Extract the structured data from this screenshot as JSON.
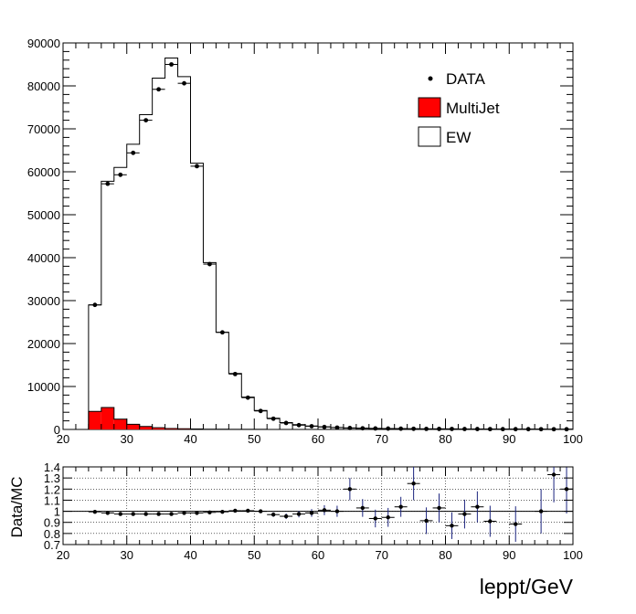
{
  "chart_data": [
    {
      "type": "bar",
      "stacked": true,
      "bin_edges": [
        24,
        26,
        28,
        30,
        32,
        34,
        36,
        38,
        40,
        42,
        44,
        46,
        48,
        50,
        52,
        54,
        56,
        58,
        60,
        62,
        64,
        66,
        68,
        70,
        72,
        74,
        76,
        78,
        80,
        82,
        84,
        86,
        88,
        90,
        92,
        94,
        96,
        98,
        100
      ],
      "series": [
        {
          "name": "MultiJet",
          "color": "#ff0000",
          "values": [
            4200,
            5100,
            2400,
            1200,
            700,
            400,
            200,
            150,
            100,
            60,
            40,
            30,
            20,
            15,
            10,
            8,
            6,
            5,
            4,
            3,
            2,
            2,
            2,
            1,
            1,
            1,
            1,
            1,
            1,
            1,
            1,
            1,
            1,
            1,
            1,
            1,
            1,
            1
          ]
        },
        {
          "name": "EW",
          "color": "#ffffff",
          "values": [
            24800,
            52700,
            58600,
            65200,
            72600,
            81400,
            86300,
            82000,
            61900,
            38800,
            22600,
            13000,
            7500,
            4400,
            2600,
            1600,
            1100,
            800,
            600,
            450,
            350,
            280,
            240,
            210,
            180,
            160,
            140,
            130,
            120,
            110,
            100,
            90,
            85,
            80,
            75,
            70,
            65,
            60
          ]
        }
      ],
      "data_series": {
        "name": "DATA",
        "x": [
          25,
          27,
          29,
          31,
          33,
          35,
          37,
          39,
          41,
          43,
          45,
          47,
          49,
          51,
          53,
          55,
          57,
          59,
          61,
          63,
          65,
          67,
          69,
          71,
          73,
          75,
          77,
          79,
          81,
          83,
          85,
          87,
          89,
          91,
          93,
          95,
          97,
          99
        ],
        "y": [
          29000,
          57200,
          59300,
          64400,
          72000,
          79200,
          85000,
          80600,
          61300,
          38500,
          22600,
          12900,
          7400,
          4300,
          2500,
          1500,
          1000,
          750,
          580,
          430,
          340,
          270,
          230,
          200,
          170,
          150,
          130,
          120,
          110,
          100,
          90,
          80,
          75,
          70,
          65,
          60,
          55,
          50
        ]
      },
      "xlim": [
        20,
        100
      ],
      "ylim": [
        0,
        90000
      ],
      "x_ticks": [
        "20",
        "30",
        "40",
        "50",
        "60",
        "70",
        "80",
        "90",
        "100"
      ],
      "y_ticks": [
        "0",
        "10000",
        "20000",
        "30000",
        "40000",
        "50000",
        "60000",
        "70000",
        "80000",
        "90000"
      ],
      "legend": {
        "placement": "top-right",
        "entries": [
          {
            "label": "DATA",
            "style": "marker"
          },
          {
            "label": "MultiJet",
            "style": "fill",
            "color": "#ff0000"
          },
          {
            "label": "EW",
            "style": "fill",
            "color": "#ffffff"
          }
        ]
      }
    },
    {
      "type": "scatter",
      "ylabel": "Data/MC",
      "xlabel": "leppt/GeV",
      "xlim": [
        20,
        100
      ],
      "ylim": [
        0.7,
        1.4
      ],
      "grid": true,
      "reference_line": 1,
      "x_ticks": [
        "20",
        "30",
        "40",
        "50",
        "60",
        "70",
        "80",
        "90",
        "100"
      ],
      "y_ticks": [
        "0.7",
        "0.8",
        "0.9",
        "1",
        "1.1",
        "1.2",
        "1.3",
        "1.4"
      ],
      "points": {
        "x": [
          25,
          27,
          29,
          31,
          33,
          35,
          37,
          39,
          41,
          43,
          45,
          47,
          49,
          51,
          53,
          55,
          57,
          59,
          61,
          63,
          65,
          67,
          69,
          71,
          73,
          75,
          77,
          79,
          81,
          83,
          85,
          87,
          91,
          95,
          97,
          99
        ],
        "y": [
          0.995,
          0.985,
          0.975,
          0.975,
          0.975,
          0.975,
          0.975,
          0.985,
          0.985,
          0.99,
          0.995,
          1.005,
          1.005,
          1.0,
          0.97,
          0.955,
          0.975,
          0.985,
          1.01,
          1.0,
          1.2,
          1.03,
          0.935,
          0.945,
          1.04,
          1.25,
          0.915,
          1.03,
          0.87,
          0.975,
          1.04,
          0.91,
          0.885,
          1.0,
          1.33,
          1.2
        ],
        "err": [
          0.006,
          0.005,
          0.005,
          0.005,
          0.005,
          0.005,
          0.005,
          0.005,
          0.005,
          0.006,
          0.007,
          0.01,
          0.012,
          0.016,
          0.02,
          0.025,
          0.03,
          0.035,
          0.045,
          0.05,
          0.1,
          0.08,
          0.08,
          0.085,
          0.09,
          0.15,
          0.12,
          0.13,
          0.12,
          0.13,
          0.14,
          0.14,
          0.16,
          0.2,
          0.25,
          0.22
        ]
      }
    }
  ]
}
